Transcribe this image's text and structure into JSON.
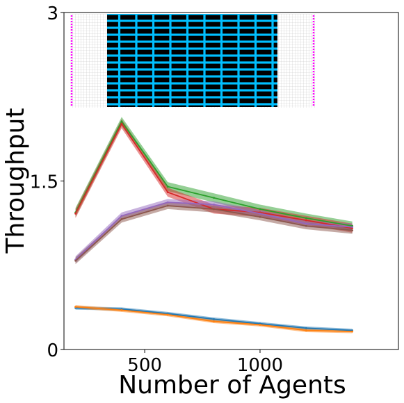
{
  "chart_data": {
    "type": "line",
    "title": "",
    "xlabel": "Number of Agents",
    "ylabel": "Throughput",
    "xlim": [
      150,
      1600
    ],
    "ylim": [
      0,
      3
    ],
    "xticks": [
      500,
      1000
    ],
    "xtick_labels": [
      "500",
      "1000"
    ],
    "yticks": [
      0,
      1.5,
      3
    ],
    "ytick_labels": [
      "0",
      "1.5",
      "3"
    ],
    "grid": false,
    "legend": "none",
    "x": [
      200,
      400,
      600,
      800,
      1000,
      1200,
      1400
    ],
    "series": [
      {
        "color": "#2ca02c",
        "values": [
          1.22,
          2.03,
          1.45,
          1.35,
          1.25,
          1.17,
          1.1
        ],
        "band": 0.04
      },
      {
        "color": "#d62728",
        "values": [
          1.21,
          2.01,
          1.4,
          1.25,
          1.22,
          1.15,
          1.08
        ],
        "band": 0.04
      },
      {
        "color": "#9467bd",
        "values": [
          0.8,
          1.19,
          1.31,
          1.29,
          1.21,
          1.12,
          1.09
        ],
        "band": 0.03
      },
      {
        "color": "#8c564b",
        "values": [
          0.79,
          1.16,
          1.28,
          1.25,
          1.18,
          1.1,
          1.06
        ],
        "band": 0.03
      },
      {
        "color": "#1f77b4",
        "values": [
          0.37,
          0.36,
          0.32,
          0.27,
          0.23,
          0.19,
          0.17
        ],
        "band": 0.015
      },
      {
        "color": "#ff7f0e",
        "values": [
          0.38,
          0.35,
          0.31,
          0.25,
          0.22,
          0.17,
          0.16
        ],
        "band": 0.015
      }
    ],
    "inset": {
      "description_colors": {
        "background": "#ffffff",
        "grid": "#b8b8b8",
        "obstacle": "#000000",
        "obstacle_edge": "#00bfff",
        "spawn": "#ff00ff"
      }
    }
  }
}
